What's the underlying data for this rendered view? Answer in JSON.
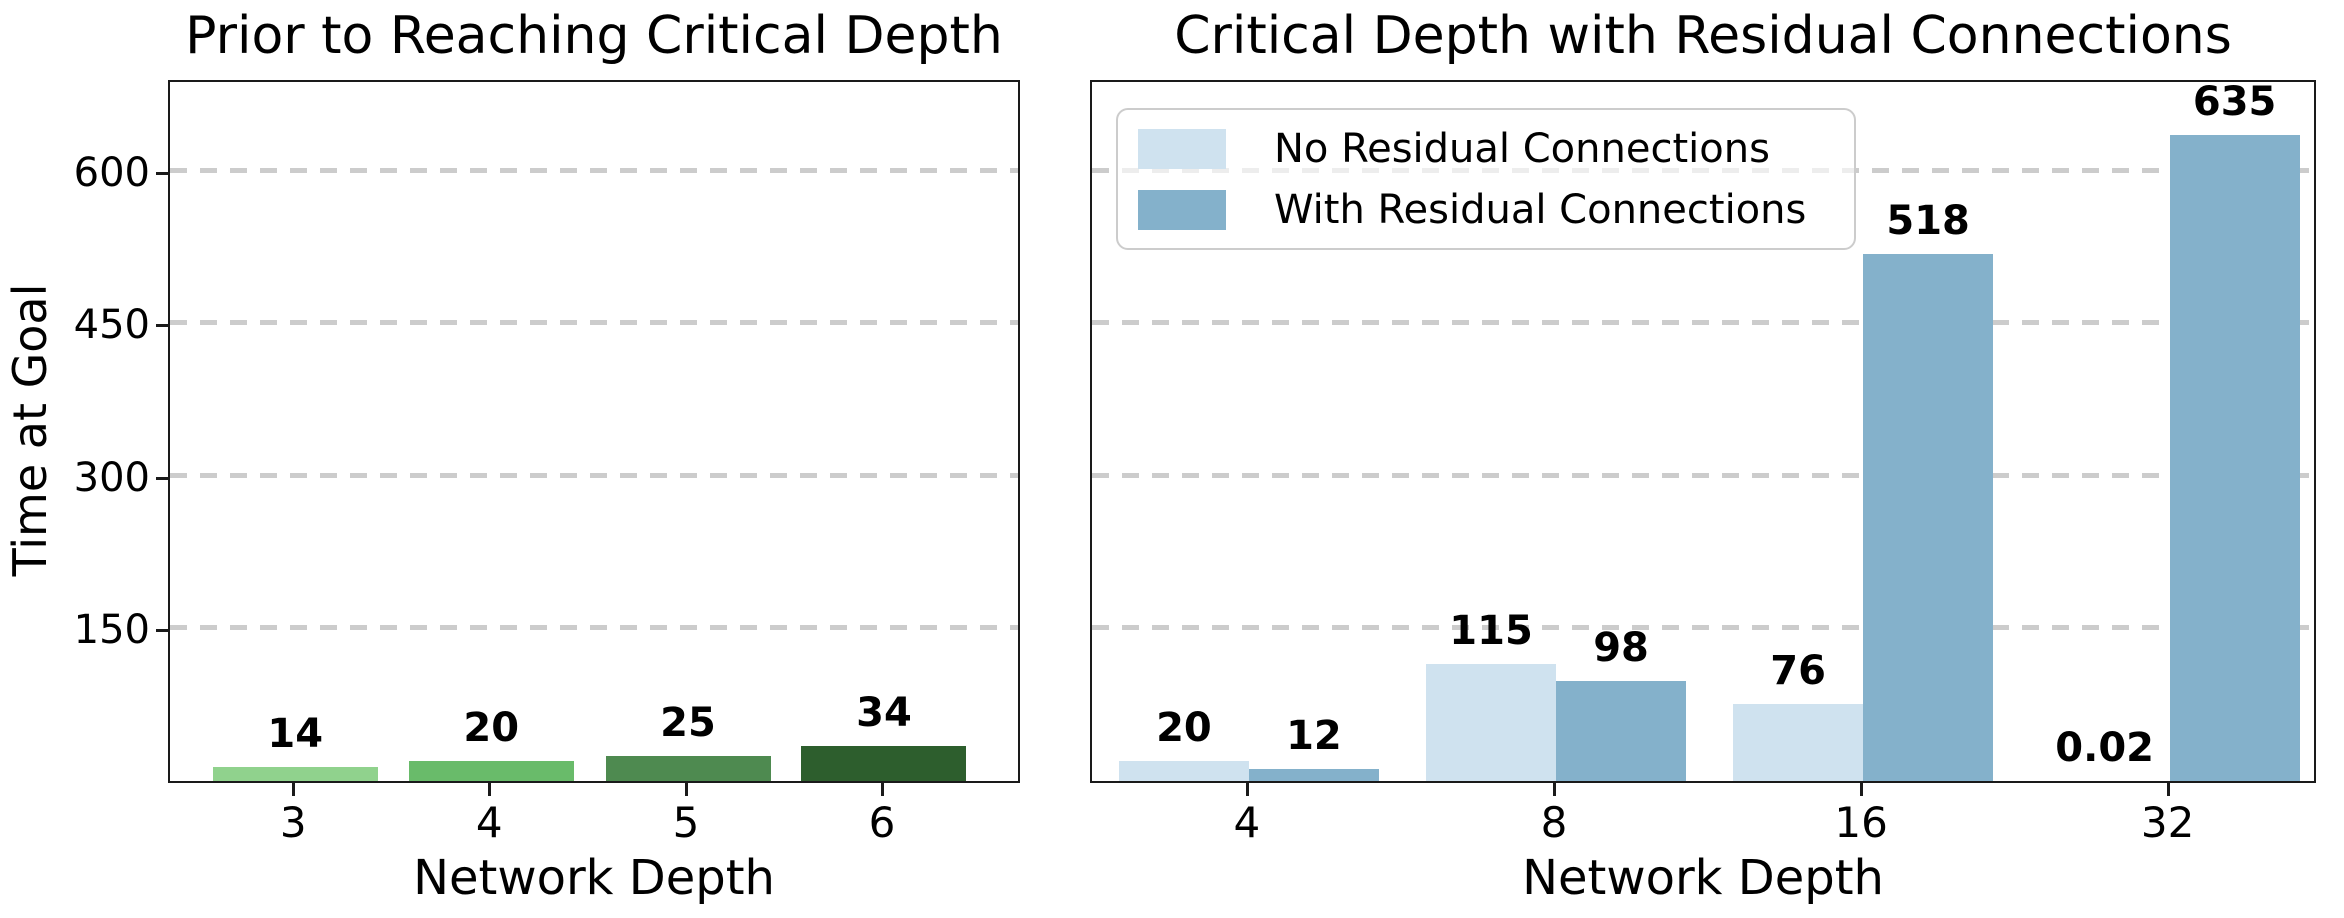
{
  "figure": {
    "background": "#ffffff",
    "text_color": "#000000",
    "grid_color": "#cccccc",
    "spine_color": "#1a1a1a"
  },
  "chart_data": [
    {
      "type": "bar",
      "title": "Prior to Reaching Critical Depth",
      "xlabel": "Network Depth",
      "ylabel": "Time at Goal",
      "categories": [
        "3",
        "4",
        "5",
        "6"
      ],
      "values": [
        14,
        20,
        25,
        34
      ],
      "value_labels": [
        "14",
        "20",
        "25",
        "34"
      ],
      "bar_colors": [
        "#90d28d",
        "#69bb6a",
        "#4e8a50",
        "#2d5e2d"
      ],
      "yticks": [
        150,
        300,
        450,
        600
      ],
      "ylim": [
        0,
        691
      ],
      "grid": "horizontal-dashed",
      "legend": null
    },
    {
      "type": "grouped_bar",
      "title": "Critical Depth with Residual Connections",
      "xlabel": "Network Depth",
      "ylabel": "",
      "categories": [
        "4",
        "8",
        "16",
        "32"
      ],
      "series": [
        {
          "name": "No Residual Connections",
          "color": "#cfe2ef",
          "values": [
            20,
            115,
            76,
            0.02
          ],
          "value_labels": [
            "20",
            "115",
            "76",
            "0.02"
          ]
        },
        {
          "name": "With Residual Connections",
          "color": "#84b1cb",
          "values": [
            12,
            98,
            518,
            635
          ],
          "value_labels": [
            "12",
            "98",
            "518",
            "635"
          ]
        }
      ],
      "yticks": [
        150,
        300,
        450,
        600
      ],
      "ylim": [
        0,
        691
      ],
      "grid": "horizontal-dashed",
      "legend_position": "upper left"
    }
  ]
}
